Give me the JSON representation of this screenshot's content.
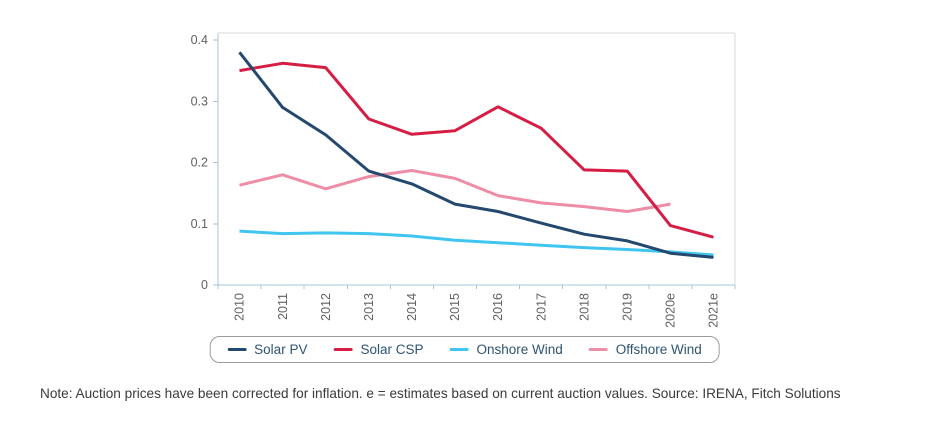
{
  "note": "Note: Auction prices have been corrected for inflation. e = estimates based on current auction values. Source: IRENA, Fitch Solutions",
  "chart_data": {
    "type": "line",
    "categories": [
      "2010",
      "2011",
      "2012",
      "2013",
      "2014",
      "2015",
      "2016",
      "2017",
      "2018",
      "2019",
      "2020e",
      "2021e"
    ],
    "series": [
      {
        "name": "Solar PV",
        "color": "#25496e",
        "values": [
          0.38,
          0.29,
          0.245,
          0.186,
          0.165,
          0.132,
          0.12,
          0.101,
          0.083,
          0.072,
          0.052,
          0.045
        ]
      },
      {
        "name": "Solar CSP",
        "color": "#d61e45",
        "values": [
          0.35,
          0.362,
          0.355,
          0.271,
          0.246,
          0.252,
          0.291,
          0.256,
          0.188,
          0.186,
          0.097,
          0.078
        ]
      },
      {
        "name": "Onshore Wind",
        "color": "#3fc5f0",
        "values": [
          0.088,
          0.084,
          0.085,
          0.084,
          0.08,
          0.073,
          0.069,
          0.065,
          0.061,
          0.058,
          0.054,
          0.049
        ]
      },
      {
        "name": "Offshore Wind",
        "color": "#ee8da6",
        "values": [
          0.163,
          0.18,
          0.157,
          0.177,
          0.187,
          0.174,
          0.146,
          0.134,
          0.128,
          0.12,
          0.132,
          null
        ]
      }
    ],
    "ylim": [
      0,
      0.4
    ],
    "yticks": {
      "values": [
        0,
        0.1,
        0.2,
        0.3,
        0.4
      ],
      "labels": [
        "0",
        "0.1",
        "0.2",
        "0.3",
        "0.4"
      ]
    },
    "grid": false,
    "legend_position": "bottom",
    "x_label_rotation": -90,
    "axis_color": "#a8c4d9",
    "border_color": "#d8d8d8",
    "label_color": "#616161"
  }
}
